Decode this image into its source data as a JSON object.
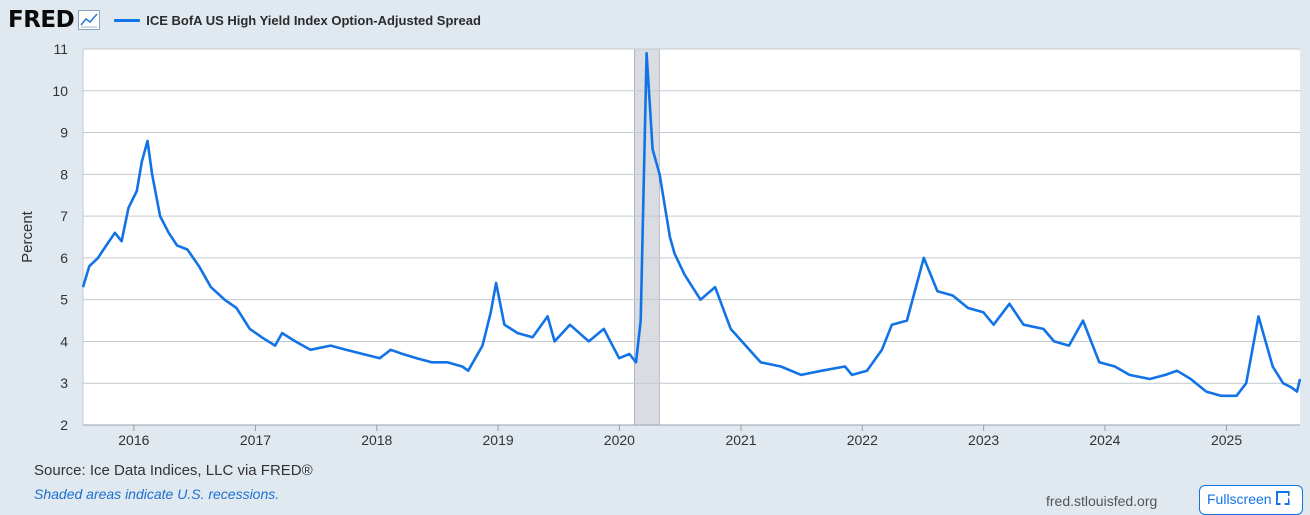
{
  "header": {
    "logo_text": "FRED",
    "series_label": "ICE BofA US High Yield Index Option-Adjusted Spread",
    "line_color": "#1273e6"
  },
  "footer": {
    "source": "Source: Ice Data Indices, LLC via FRED®",
    "recession_note": "Shaded areas indicate U.S. recessions.",
    "url": "fred.stlouisfed.org",
    "fullscreen_label": "Fullscreen"
  },
  "chart_data": {
    "type": "line",
    "title": "",
    "xlabel": "",
    "ylabel": "Percent",
    "xlim": [
      "2015-08-01",
      "2025-08-10"
    ],
    "ylim": [
      2,
      11
    ],
    "yticks": [
      2,
      3,
      4,
      5,
      6,
      7,
      8,
      9,
      10,
      11
    ],
    "xticks": [
      "2016",
      "2017",
      "2018",
      "2019",
      "2020",
      "2021",
      "2022",
      "2023",
      "2024",
      "2025"
    ],
    "grid": "horizontal",
    "legend": "top-left",
    "recession_shading": [
      {
        "start": "2020-02-15",
        "end": "2020-04-30"
      }
    ],
    "colors": {
      "series": "#1273e6",
      "recession": "#d9dde1"
    },
    "series": [
      {
        "name": "ICE BofA US High Yield Index Option-Adjusted Spread",
        "x": [
          "2015-08-01",
          "2015-08-20",
          "2015-09-15",
          "2015-10-10",
          "2015-11-05",
          "2015-11-25",
          "2015-12-16",
          "2016-01-10",
          "2016-01-25",
          "2016-02-11",
          "2016-02-25",
          "2016-03-20",
          "2016-04-15",
          "2016-05-10",
          "2016-06-10",
          "2016-07-15",
          "2016-08-20",
          "2016-09-30",
          "2016-11-05",
          "2016-12-15",
          "2017-01-20",
          "2017-03-01",
          "2017-03-22",
          "2017-05-01",
          "2017-06-15",
          "2017-08-15",
          "2017-09-30",
          "2017-11-20",
          "2018-01-10",
          "2018-02-12",
          "2018-03-20",
          "2018-05-01",
          "2018-06-15",
          "2018-08-01",
          "2018-09-15",
          "2018-10-03",
          "2018-11-15",
          "2018-12-10",
          "2018-12-26",
          "2019-01-20",
          "2019-03-01",
          "2019-04-15",
          "2019-05-30",
          "2019-06-20",
          "2019-08-05",
          "2019-10-01",
          "2019-11-15",
          "2019-12-31",
          "2020-01-31",
          "2020-02-20",
          "2020-03-05",
          "2020-03-23",
          "2020-04-10",
          "2020-05-01",
          "2020-06-01",
          "2020-06-15",
          "2020-07-15",
          "2020-09-01",
          "2020-10-15",
          "2020-12-01",
          "2021-01-15",
          "2021-03-01",
          "2021-05-01",
          "2021-07-01",
          "2021-09-01",
          "2021-11-10",
          "2021-12-01",
          "2022-01-15",
          "2022-03-01",
          "2022-03-31",
          "2022-05-15",
          "2022-07-05",
          "2022-08-15",
          "2022-09-30",
          "2022-11-15",
          "2022-12-31",
          "2023-01-31",
          "2023-03-20",
          "2023-05-01",
          "2023-06-30",
          "2023-08-01",
          "2023-09-15",
          "2023-10-27",
          "2023-12-15",
          "2024-01-31",
          "2024-03-15",
          "2024-05-15",
          "2024-07-01",
          "2024-08-05",
          "2024-09-15",
          "2024-11-01",
          "2024-12-15",
          "2025-01-31",
          "2025-03-01",
          "2025-04-07",
          "2025-04-25",
          "2025-05-20",
          "2025-06-20",
          "2025-07-15",
          "2025-08-01",
          "2025-08-10"
        ],
        "y": [
          5.3,
          5.8,
          6.0,
          6.3,
          6.6,
          6.4,
          7.2,
          7.6,
          8.3,
          8.8,
          8.0,
          7.0,
          6.6,
          6.3,
          6.2,
          5.8,
          5.3,
          5.0,
          4.8,
          4.3,
          4.1,
          3.9,
          4.2,
          4.0,
          3.8,
          3.9,
          3.8,
          3.7,
          3.6,
          3.8,
          3.7,
          3.6,
          3.5,
          3.5,
          3.4,
          3.3,
          3.9,
          4.7,
          5.4,
          4.4,
          4.2,
          4.1,
          4.6,
          4.0,
          4.4,
          4.0,
          4.3,
          3.6,
          3.7,
          3.5,
          4.5,
          10.9,
          8.6,
          8.0,
          6.5,
          6.1,
          5.6,
          5.0,
          5.3,
          4.3,
          3.9,
          3.5,
          3.4,
          3.2,
          3.3,
          3.4,
          3.2,
          3.3,
          3.8,
          4.4,
          4.5,
          6.0,
          5.2,
          5.1,
          4.8,
          4.7,
          4.4,
          4.9,
          4.4,
          4.3,
          4.0,
          3.9,
          4.5,
          3.5,
          3.4,
          3.2,
          3.1,
          3.2,
          3.3,
          3.1,
          2.8,
          2.7,
          2.7,
          3.0,
          4.6,
          4.1,
          3.4,
          3.0,
          2.9,
          2.8,
          3.1
        ]
      }
    ]
  }
}
